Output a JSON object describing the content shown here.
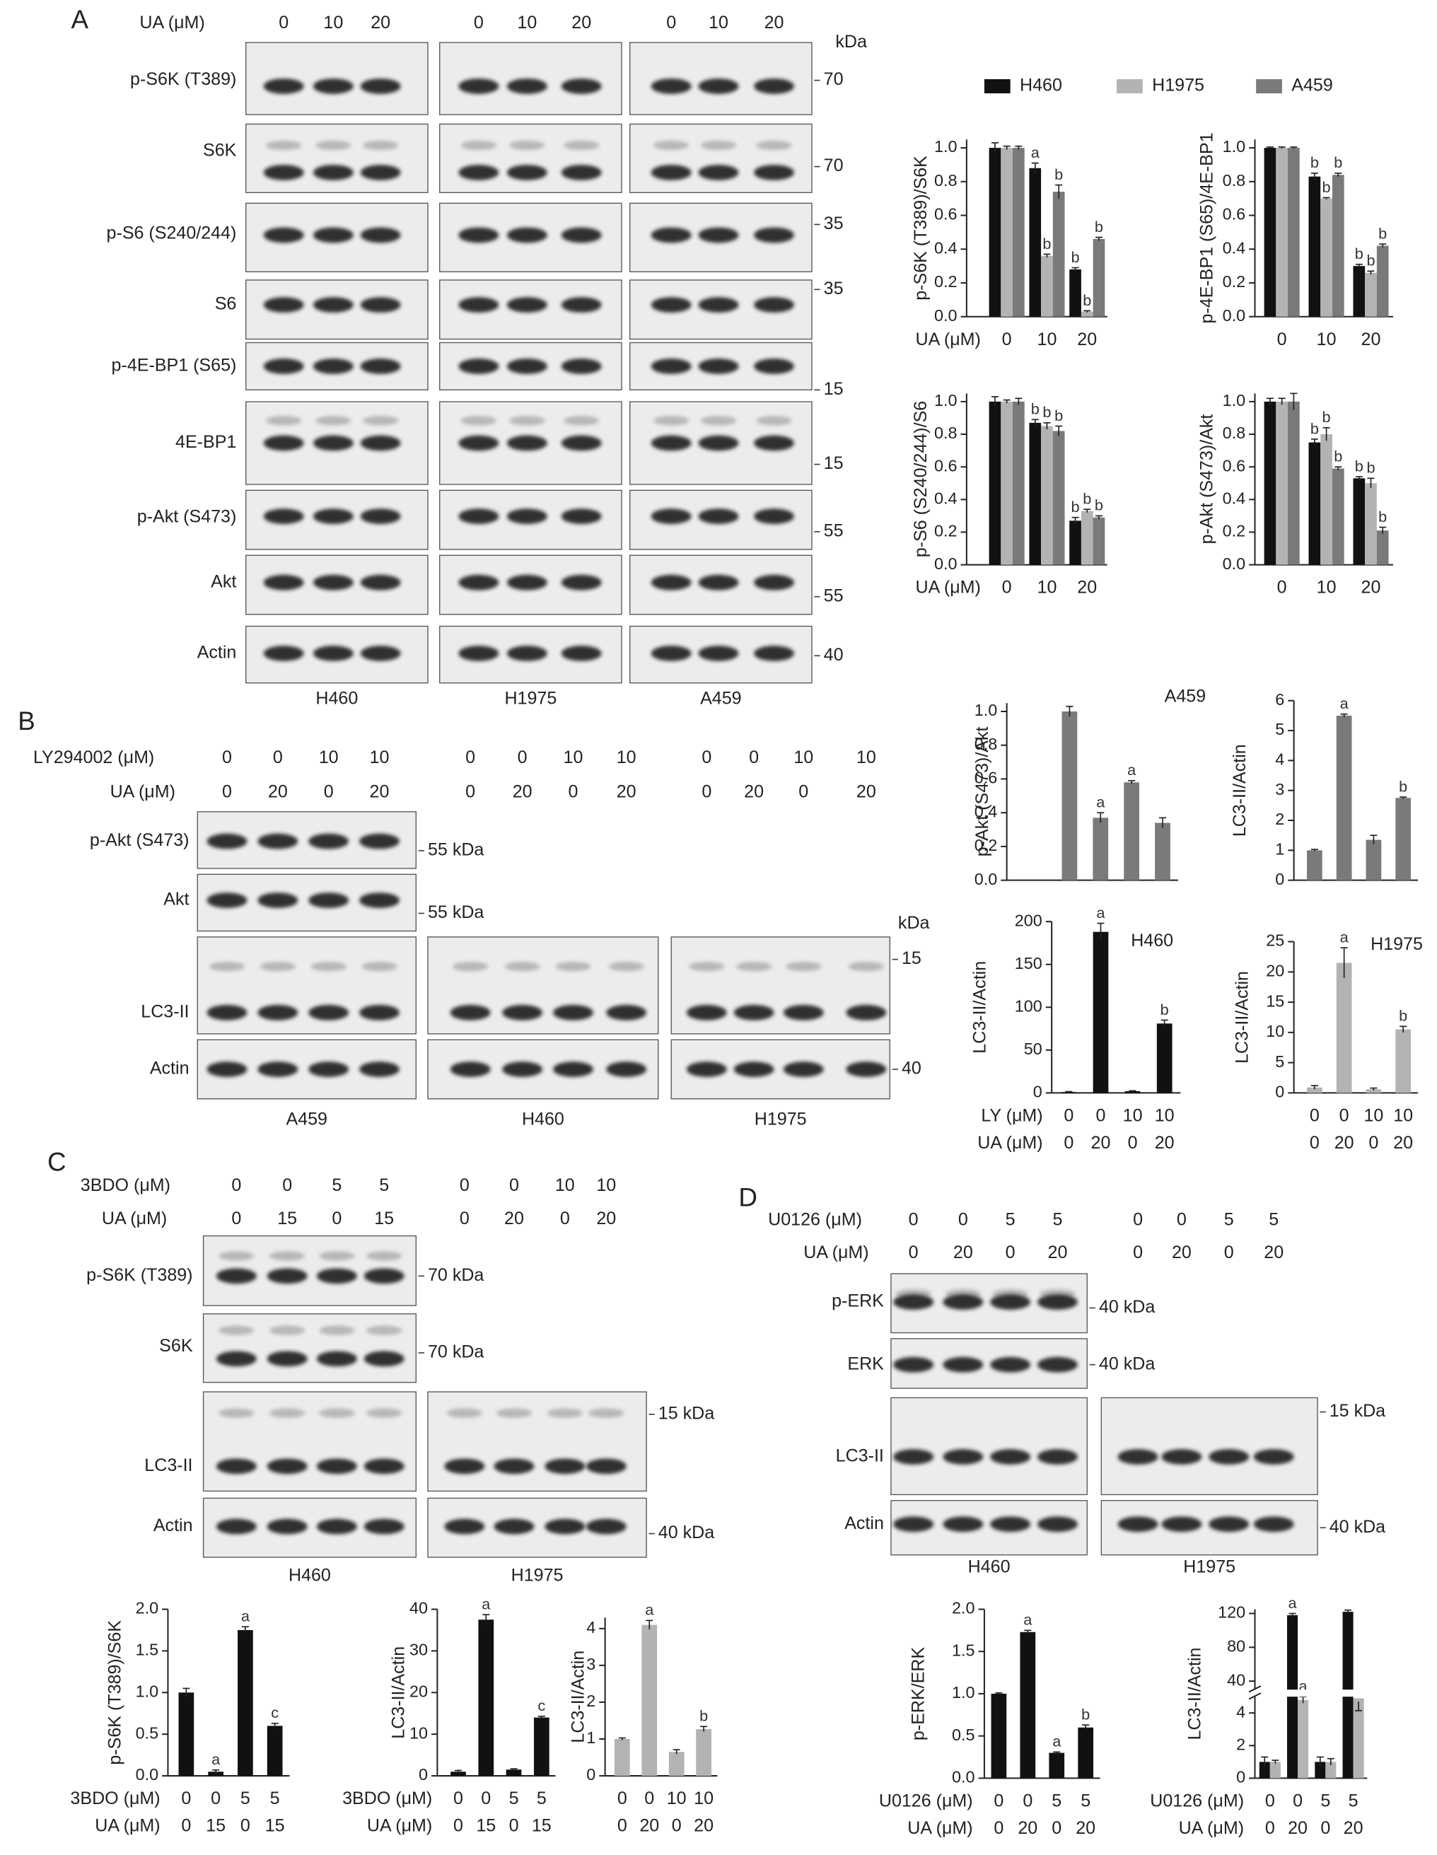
{
  "panel_labels": [
    "A",
    "B",
    "C",
    "D"
  ],
  "blots": [
    {
      "lane_headers": [
        {
          "label": "UA (μM)",
          "values": [
            [
              "0",
              "10",
              "20"
            ],
            [
              "0",
              "10",
              "20"
            ],
            [
              "0",
              "10",
              "20"
            ]
          ]
        }
      ],
      "kda_title": "kDa",
      "rows": [
        {
          "label": "p-S6K (T389)",
          "marker": "70"
        },
        {
          "label": "S6K",
          "marker": "70"
        },
        {
          "label": "p-S6 (S240/244)",
          "marker": "35"
        },
        {
          "label": "S6",
          "marker": "35"
        },
        {
          "label": "p-4E-BP1 (S65)",
          "marker": "15"
        },
        {
          "label": "4E-BP1",
          "marker": "15"
        },
        {
          "label": "p-Akt (S473)",
          "marker": "55"
        },
        {
          "label": "Akt",
          "marker": "55"
        },
        {
          "label": "Actin",
          "marker": "40"
        }
      ],
      "cell_lines": [
        "H460",
        "H1975",
        "A459"
      ]
    },
    {
      "lane_headers": [
        {
          "label": "LY294002 (μM)",
          "values": [
            [
              "0",
              "0",
              "10",
              "10"
            ],
            [
              "0",
              "0",
              "10",
              "10"
            ],
            [
              "0",
              "0",
              "10",
              "10"
            ]
          ]
        },
        {
          "label": "UA (μM)",
          "values": [
            [
              "0",
              "20",
              "0",
              "20"
            ],
            [
              "0",
              "20",
              "0",
              "20"
            ],
            [
              "0",
              "20",
              "0",
              "20"
            ]
          ]
        }
      ],
      "kda_title": "kDa",
      "rows": [
        {
          "label": "p-Akt (S473)",
          "marker": "55 kDa"
        },
        {
          "label": "Akt",
          "marker": "55 kDa"
        },
        {
          "label": "LC3-II",
          "marker": "15"
        },
        {
          "label": "Actin",
          "marker": "40"
        }
      ],
      "cell_lines": [
        "A459",
        "H460",
        "H1975"
      ]
    },
    {
      "lane_headers": [
        {
          "label": "3BDO (μM)",
          "values": [
            [
              "0",
              "0",
              "5",
              "5"
            ],
            [
              "0",
              "0",
              "10",
              "10"
            ]
          ]
        },
        {
          "label": "UA (μM)",
          "values": [
            [
              "0",
              "15",
              "0",
              "15"
            ],
            [
              "0",
              "20",
              "0",
              "20"
            ]
          ]
        }
      ],
      "rows": [
        {
          "label": "p-S6K (T389)",
          "marker": "70 kDa"
        },
        {
          "label": "S6K",
          "marker": "70 kDa"
        },
        {
          "label": "LC3-II",
          "marker": "15 kDa"
        },
        {
          "label": "Actin",
          "marker": "40 kDa"
        }
      ],
      "cell_lines": [
        "H460",
        "H1975"
      ]
    },
    {
      "lane_headers": [
        {
          "label": "U0126 (μM)",
          "values": [
            [
              "0",
              "0",
              "5",
              "5"
            ],
            [
              "0",
              "0",
              "5",
              "5"
            ]
          ]
        },
        {
          "label": "UA (μM)",
          "values": [
            [
              "0",
              "20",
              "0",
              "20"
            ],
            [
              "0",
              "20",
              "0",
              "20"
            ]
          ]
        }
      ],
      "rows": [
        {
          "label": "p-ERK",
          "marker": "40 kDa"
        },
        {
          "label": "ERK",
          "marker": "40 kDa"
        },
        {
          "label": "LC3-II",
          "marker": "15 kDa"
        },
        {
          "label": "Actin",
          "marker": "40 kDa"
        }
      ],
      "cell_lines": [
        "H460",
        "H1975"
      ]
    }
  ],
  "chart_data": [
    {
      "type": "bar",
      "ylabel": "p-S6K (T389)/S6K",
      "xlabel": "UA (μM)",
      "categories": [
        "0",
        "10",
        "20"
      ],
      "legend": true,
      "series": [
        {
          "name": "H460",
          "color": "#111111",
          "values": [
            1.0,
            0.88,
            0.28
          ],
          "errors": [
            0.03,
            0.03,
            0.01
          ],
          "labels": [
            null,
            "a",
            "b"
          ]
        },
        {
          "name": "H1975",
          "color": "#b3b3b3",
          "values": [
            1.0,
            0.36,
            0.03
          ],
          "errors": [
            0.01,
            0.01,
            0.005
          ],
          "labels": [
            null,
            "b",
            "b"
          ]
        },
        {
          "name": "A459",
          "color": "#7a7a7a",
          "values": [
            1.0,
            0.74,
            0.46
          ],
          "errors": [
            0.01,
            0.04,
            0.01
          ],
          "labels": [
            null,
            "b",
            "b"
          ]
        }
      ],
      "ylim": [
        0,
        1.05
      ],
      "yticks": [
        {
          "value": 0,
          "label": "0.0"
        },
        0.2,
        0.4,
        0.6,
        0.8,
        {
          "value": 1,
          "label": "1.0"
        }
      ]
    },
    {
      "type": "bar",
      "ylabel": "p-4E-BP1 (S65)/4E-BP1",
      "categories": [
        "0",
        "10",
        "20"
      ],
      "series": [
        {
          "color": "#111111",
          "values": [
            1.0,
            0.83,
            0.3
          ],
          "errors": [
            0.005,
            0.02,
            0.01
          ],
          "labels": [
            null,
            "b",
            "b"
          ]
        },
        {
          "color": "#b3b3b3",
          "values": [
            1.0,
            0.7,
            0.26
          ],
          "errors": [
            0.005,
            0.005,
            0.01
          ],
          "labels": [
            null,
            "b",
            "b"
          ]
        },
        {
          "color": "#7a7a7a",
          "values": [
            1.0,
            0.84,
            0.42
          ],
          "errors": [
            0.005,
            0.01,
            0.01
          ],
          "labels": [
            null,
            "b",
            "b"
          ]
        }
      ],
      "ylim": [
        0,
        1.05
      ],
      "yticks": [
        {
          "value": 0,
          "label": "0.0"
        },
        0.2,
        0.4,
        0.6,
        0.8,
        {
          "value": 1,
          "label": "1.0"
        }
      ]
    },
    {
      "type": "bar",
      "ylabel": "p-S6 (S240/244)/S6",
      "xlabel": "UA (μM)",
      "categories": [
        "0",
        "10",
        "20"
      ],
      "series": [
        {
          "color": "#111111",
          "values": [
            1.0,
            0.87,
            0.27
          ],
          "errors": [
            0.03,
            0.02,
            0.02
          ],
          "labels": [
            null,
            "b",
            "b"
          ]
        },
        {
          "color": "#b3b3b3",
          "values": [
            1.0,
            0.85,
            0.33
          ],
          "errors": [
            0.01,
            0.02,
            0.01
          ],
          "labels": [
            null,
            "b",
            "b"
          ]
        },
        {
          "color": "#7a7a7a",
          "values": [
            1.0,
            0.82,
            0.29
          ],
          "errors": [
            0.02,
            0.03,
            0.01
          ],
          "labels": [
            null,
            "b",
            "b"
          ]
        }
      ],
      "ylim": [
        0,
        1.05
      ],
      "yticks": [
        {
          "value": 0,
          "label": "0.0"
        },
        0.2,
        0.4,
        0.6,
        0.8,
        {
          "value": 1,
          "label": "1.0"
        }
      ]
    },
    {
      "type": "bar",
      "ylabel": "p-Akt (S473)/Akt",
      "categories": [
        "0",
        "10",
        "20"
      ],
      "series": [
        {
          "color": "#111111",
          "values": [
            1.0,
            0.75,
            0.53
          ],
          "errors": [
            0.02,
            0.02,
            0.01
          ],
          "labels": [
            null,
            "b",
            "b"
          ]
        },
        {
          "color": "#b3b3b3",
          "values": [
            1.0,
            0.8,
            0.5
          ],
          "errors": [
            0.02,
            0.04,
            0.03
          ],
          "labels": [
            null,
            "b",
            "b"
          ]
        },
        {
          "color": "#7a7a7a",
          "values": [
            1.0,
            0.59,
            0.21
          ],
          "errors": [
            0.05,
            0.01,
            0.02
          ],
          "labels": [
            null,
            "b",
            "b"
          ]
        }
      ],
      "ylim": [
        0,
        1.05
      ],
      "yticks": [
        {
          "value": 0,
          "label": "0.0"
        },
        0.2,
        0.4,
        0.6,
        0.8,
        {
          "value": 1,
          "label": "1.0"
        }
      ]
    },
    {
      "type": "bar",
      "title": "A459",
      "ylabel": "p-Akt (S473)/Akt",
      "color": "#7a7a7a",
      "values": [
        1.0,
        0.37,
        0.58,
        0.34
      ],
      "errors": [
        0.03,
        0.03,
        0.01,
        0.03
      ],
      "labels": [
        null,
        "a",
        "a",
        null
      ],
      "ylim": [
        0,
        1.05
      ],
      "yticks": [
        {
          "value": 0,
          "label": "0.0"
        },
        0.2,
        0.4,
        0.6,
        0.8,
        {
          "value": 1,
          "label": "1.0"
        }
      ]
    },
    {
      "type": "bar",
      "ylabel": "LC3-II/Actin",
      "color": "#7a7a7a",
      "values": [
        1.0,
        5.5,
        1.35,
        2.75
      ],
      "errors": [
        0.03,
        0.05,
        0.15,
        0.03
      ],
      "labels": [
        null,
        "a",
        null,
        "b"
      ],
      "ylim": [
        0,
        6
      ],
      "yticks": [
        0,
        1,
        2,
        3,
        4,
        5,
        6
      ]
    },
    {
      "type": "bar",
      "title": "H460",
      "ylabel": "LC3-II/Actin",
      "color": "#111111",
      "values": [
        1,
        188,
        2,
        81
      ],
      "errors": [
        0.5,
        10,
        0.5,
        4
      ],
      "labels": [
        null,
        "a",
        null,
        "b"
      ],
      "categories": [
        "0",
        "0",
        "10",
        "10"
      ],
      "categories2": [
        "0",
        "20",
        "0",
        "20"
      ],
      "xlabel": "LY (μM)",
      "xlabel2": "UA (μM)",
      "ylim": [
        0,
        200
      ],
      "yticks": [
        0,
        50,
        100,
        150,
        200
      ]
    },
    {
      "type": "bar",
      "title": "H1975",
      "ylabel": "LC3-II/Actin",
      "color": "#b3b3b3",
      "values": [
        0.9,
        21.5,
        0.6,
        10.5
      ],
      "errors": [
        0.3,
        2.5,
        0.2,
        0.5
      ],
      "labels": [
        null,
        "a",
        null,
        "b"
      ],
      "categories": [
        "0",
        "0",
        "10",
        "10"
      ],
      "categories2": [
        "0",
        "20",
        "0",
        "20"
      ],
      "ylim": [
        0,
        25
      ],
      "yticks": [
        0,
        5,
        10,
        15,
        20,
        25
      ]
    },
    {
      "type": "bar",
      "ylabel": "p-S6K (T389)/S6K",
      "color": "#111111",
      "values": [
        1.0,
        0.05,
        1.75,
        0.6
      ],
      "errors": [
        0.05,
        0.02,
        0.04,
        0.03
      ],
      "labels": [
        null,
        "a",
        "a",
        "c"
      ],
      "categories": [
        "0",
        "0",
        "5",
        "5"
      ],
      "categories2": [
        "0",
        "15",
        "0",
        "15"
      ],
      "xlabel": "3BDO (μM)",
      "xlabel2": "UA (μM)",
      "ylim": [
        0,
        2
      ],
      "yticks": [
        {
          "value": 0,
          "label": "0.0"
        },
        0.5,
        {
          "value": 1,
          "label": "1.0"
        },
        1.5,
        {
          "value": 2,
          "label": "2.0"
        }
      ]
    },
    {
      "type": "bar",
      "ylabel": "LC3-II/Actin",
      "color": "#111111",
      "values": [
        1,
        37.5,
        1.5,
        14
      ],
      "errors": [
        0.3,
        1.2,
        0.2,
        0.3
      ],
      "labels": [
        null,
        "a",
        null,
        "c"
      ],
      "categories": [
        "0",
        "0",
        "5",
        "5"
      ],
      "categories2": [
        "0",
        "15",
        "0",
        "15"
      ],
      "xlabel": "3BDO (μM)",
      "xlabel2": "UA (μM)",
      "ylim": [
        0,
        40
      ],
      "yticks": [
        0,
        10,
        20,
        30,
        40
      ]
    },
    {
      "type": "bar",
      "ylabel": "LC3-II/Actin",
      "color": "#b3b3b3",
      "values": [
        1.0,
        4.1,
        0.65,
        1.27
      ],
      "errors": [
        0.03,
        0.12,
        0.06,
        0.07
      ],
      "labels": [
        null,
        "a",
        null,
        "b"
      ],
      "categories": [
        "0",
        "0",
        "10",
        "10"
      ],
      "categories2": [
        "0",
        "20",
        "0",
        "20"
      ],
      "ylim": [
        0,
        4.3
      ],
      "yticks": [
        0,
        1,
        2,
        3,
        4
      ]
    },
    {
      "type": "bar",
      "ylabel": "p-ERK/ERK",
      "color": "#111111",
      "values": [
        1.0,
        1.73,
        0.3,
        0.6
      ],
      "errors": [
        0.01,
        0.02,
        0.01,
        0.03
      ],
      "labels": [
        null,
        "a",
        "a",
        "b"
      ],
      "categories": [
        "0",
        "0",
        "5",
        "5"
      ],
      "categories2": [
        "0",
        "20",
        "0",
        "20"
      ],
      "xlabel": "U0126 (μM)",
      "xlabel2": "UA (μM)",
      "ylim": [
        0,
        2
      ],
      "yticks": [
        {
          "value": 0,
          "label": "0.0"
        },
        0.5,
        {
          "value": 1,
          "label": "1.0"
        },
        1.5,
        {
          "value": 2,
          "label": "2.0"
        }
      ]
    },
    {
      "type": "bar",
      "ylabel": "LC3-II/Actin",
      "series": [
        {
          "color": "#111111",
          "values": [
            1,
            118,
            1,
            122
          ],
          "errors": [
            0.3,
            2,
            0.3,
            2
          ],
          "labels": [
            null,
            "a",
            null,
            null
          ]
        },
        {
          "color": "#b3b3b3",
          "values": [
            1,
            4.8,
            1,
            4.9
          ],
          "errors": [
            0.1,
            0.2,
            0.2,
            0.2
          ],
          "labels": [
            null,
            "a",
            null,
            null
          ]
        }
      ],
      "categories": [
        "0",
        "0",
        "5",
        "5"
      ],
      "categories2": [
        "0",
        "20",
        "0",
        "20"
      ],
      "xlabel": "U0126 (μM)",
      "xlabel2": "UA (μM)",
      "segments": [
        {
          "ylim": [
            0,
            5
          ],
          "yticks": [
            0,
            2,
            4
          ]
        },
        {
          "ylim": [
            30,
            125
          ],
          "yticks": [
            40,
            80,
            120
          ]
        }
      ]
    }
  ]
}
